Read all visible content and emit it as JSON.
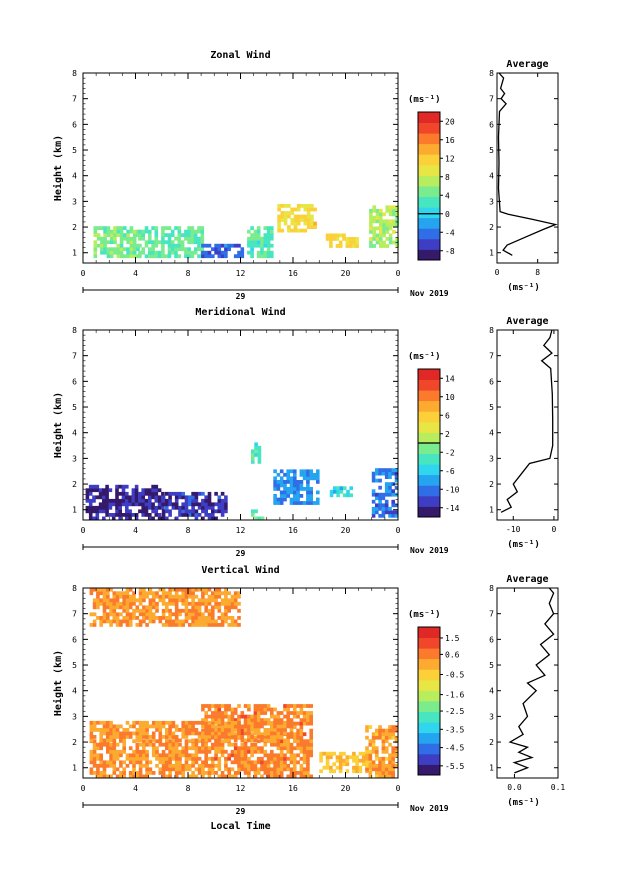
{
  "date_label": "Nov 2019",
  "day_label": "29",
  "xlabel_bottom": "Local Time",
  "colors": {
    "scale": [
      "#35196b",
      "#3d3ec4",
      "#2f6ee6",
      "#25a4f0",
      "#2fd6ee",
      "#48e6c0",
      "#7bec8e",
      "#b8ee5d",
      "#e8e644",
      "#fbd038",
      "#fcaa30",
      "#fb7a2c",
      "#f0462a",
      "#e02826"
    ]
  },
  "chart_data": [
    {
      "type": "heatmap",
      "title": "Zonal Wind",
      "ylabel": "Height (km)",
      "xlabel": "",
      "x_ticks": [
        "0",
        "4",
        "8",
        "12",
        "16",
        "20",
        "0"
      ],
      "y_ticks": [
        "1",
        "2",
        "3",
        "4",
        "5",
        "6",
        "7",
        "8"
      ],
      "xlim": [
        0,
        24
      ],
      "ylim": [
        0.6,
        8
      ],
      "colorbar": {
        "unit": "(ms⁻¹)",
        "labels": [
          "20",
          "16",
          "12",
          "8",
          "4",
          "0",
          "-4",
          "-8"
        ],
        "range": [
          -10,
          22
        ],
        "zero_line": 0
      },
      "regions": [
        {
          "x": [
            0.8,
            4.2
          ],
          "y": [
            0.8,
            2.0
          ],
          "value": 5
        },
        {
          "x": [
            4.2,
            9.0
          ],
          "y": [
            0.8,
            2.0
          ],
          "value": 4
        },
        {
          "x": [
            9.0,
            12.2
          ],
          "y": [
            0.8,
            1.3
          ],
          "value": -5
        },
        {
          "x": [
            12.5,
            14.5
          ],
          "y": [
            0.8,
            1.9
          ],
          "value": 3
        },
        {
          "x": [
            14.8,
            17.8
          ],
          "y": [
            1.8,
            2.8
          ],
          "value": 11
        },
        {
          "x": [
            18.5,
            21.0
          ],
          "y": [
            1.2,
            1.7
          ],
          "value": 11
        },
        {
          "x": [
            21.8,
            24.0
          ],
          "y": [
            1.2,
            2.8
          ],
          "value": 7
        }
      ],
      "average": {
        "title": "Average",
        "unit": "(ms⁻¹)",
        "x_ticks": [
          "0",
          "8"
        ],
        "xlim": [
          0,
          12
        ],
        "profile_h": [
          0.9,
          1.1,
          1.3,
          1.6,
          1.9,
          2.1,
          2.3,
          2.5,
          2.6,
          3.5,
          4.5,
          5.5,
          6.5,
          6.8,
          7.0,
          7.2,
          7.4,
          7.8,
          8.0
        ],
        "profile_v": [
          3.0,
          1.2,
          2.0,
          5.5,
          9.0,
          11.5,
          7.0,
          2.2,
          0.6,
          0.3,
          0.4,
          0.3,
          0.5,
          1.8,
          0.8,
          1.5,
          0.7,
          1.3,
          0.4
        ]
      }
    },
    {
      "type": "heatmap",
      "title": "Meridional Wind",
      "ylabel": "Height (km)",
      "xlabel": "",
      "x_ticks": [
        "0",
        "4",
        "8",
        "12",
        "16",
        "20",
        "0"
      ],
      "y_ticks": [
        "1",
        "2",
        "3",
        "4",
        "5",
        "6",
        "7",
        "8"
      ],
      "xlim": [
        0,
        24
      ],
      "ylim": [
        0.6,
        8
      ],
      "colorbar": {
        "unit": "(ms⁻¹)",
        "labels": [
          "14",
          "10",
          "6",
          "2",
          "-2",
          "-6",
          "-10",
          "-14"
        ],
        "range": [
          -16,
          16
        ],
        "zero_line": 0
      },
      "regions": [
        {
          "x": [
            0.2,
            6.0
          ],
          "y": [
            0.6,
            1.9
          ],
          "value": -14
        },
        {
          "x": [
            6.0,
            11.0
          ],
          "y": [
            0.6,
            1.6
          ],
          "value": -13
        },
        {
          "x": [
            12.8,
            13.6
          ],
          "y": [
            0.6,
            0.9
          ],
          "value": -2
        },
        {
          "x": [
            12.8,
            13.5
          ],
          "y": [
            2.8,
            3.6
          ],
          "value": -3
        },
        {
          "x": [
            14.5,
            17.8
          ],
          "y": [
            1.2,
            2.5
          ],
          "value": -9
        },
        {
          "x": [
            18.8,
            20.5
          ],
          "y": [
            1.5,
            1.8
          ],
          "value": -5
        },
        {
          "x": [
            22.0,
            24.0
          ],
          "y": [
            0.7,
            2.5
          ],
          "value": -10
        }
      ],
      "average": {
        "title": "Average",
        "unit": "(ms⁻¹)",
        "x_ticks": [
          "-10",
          "0"
        ],
        "xlim": [
          -14,
          1
        ],
        "profile_h": [
          0.9,
          1.1,
          1.4,
          1.7,
          2.0,
          2.4,
          2.8,
          3.0,
          3.5,
          4.5,
          5.5,
          6.5,
          6.8,
          7.1,
          7.4,
          7.7,
          8.0
        ],
        "profile_v": [
          -13.0,
          -10.5,
          -11.5,
          -9.0,
          -10.0,
          -8.0,
          -6.0,
          -1.0,
          -0.3,
          -0.3,
          -0.4,
          -0.8,
          -3.0,
          -0.5,
          -2.5,
          -1.0,
          -0.5
        ]
      }
    },
    {
      "type": "heatmap",
      "title": "Vertical Wind",
      "ylabel": "Height (km)",
      "xlabel": "Local Time",
      "x_ticks": [
        "0",
        "4",
        "8",
        "12",
        "16",
        "20",
        "0"
      ],
      "y_ticks": [
        "1",
        "2",
        "3",
        "4",
        "5",
        "6",
        "7",
        "8"
      ],
      "xlim": [
        0,
        24
      ],
      "ylim": [
        0.6,
        8
      ],
      "colorbar": {
        "unit": "(ms⁻¹)",
        "labels": [
          "1.5",
          "0.6",
          "-0.5",
          "-1.6",
          "-2.5",
          "-3.5",
          "-4.5",
          "-5.5"
        ],
        "range": [
          -6.0,
          2.1
        ],
        "zero_line": null
      },
      "regions": [
        {
          "x": [
            0.5,
            9.0
          ],
          "y": [
            0.6,
            2.0
          ],
          "value": 0.3
        },
        {
          "x": [
            9.0,
            17.5
          ],
          "y": [
            0.6,
            3.4
          ],
          "value": 0.5
        },
        {
          "x": [
            0.5,
            16.0
          ],
          "y": [
            2.0,
            2.8
          ],
          "value": 0.4
        },
        {
          "x": [
            0.5,
            12.0
          ],
          "y": [
            6.5,
            7.9
          ],
          "value": 0.3
        },
        {
          "x": [
            18.0,
            22.0
          ],
          "y": [
            0.8,
            1.6
          ],
          "value": -0.3
        },
        {
          "x": [
            21.5,
            24.0
          ],
          "y": [
            0.6,
            2.6
          ],
          "value": 0.2
        }
      ],
      "average": {
        "title": "Average",
        "unit": "(ms⁻¹)",
        "x_ticks": [
          "0.0",
          "0.1"
        ],
        "xlim": [
          -0.04,
          0.1
        ],
        "profile_h": [
          0.8,
          1.0,
          1.2,
          1.4,
          1.6,
          1.8,
          2.0,
          2.3,
          2.6,
          3.0,
          3.5,
          4.0,
          4.3,
          4.6,
          5.0,
          5.4,
          5.8,
          6.2,
          6.6,
          7.0,
          7.4,
          7.8,
          8.0
        ],
        "profile_v": [
          0.0,
          0.03,
          0.0,
          0.04,
          0.01,
          0.03,
          -0.01,
          0.02,
          0.01,
          0.03,
          0.02,
          0.05,
          0.03,
          0.07,
          0.05,
          0.08,
          0.06,
          0.09,
          0.07,
          0.09,
          0.08,
          0.09,
          0.08
        ]
      }
    }
  ]
}
